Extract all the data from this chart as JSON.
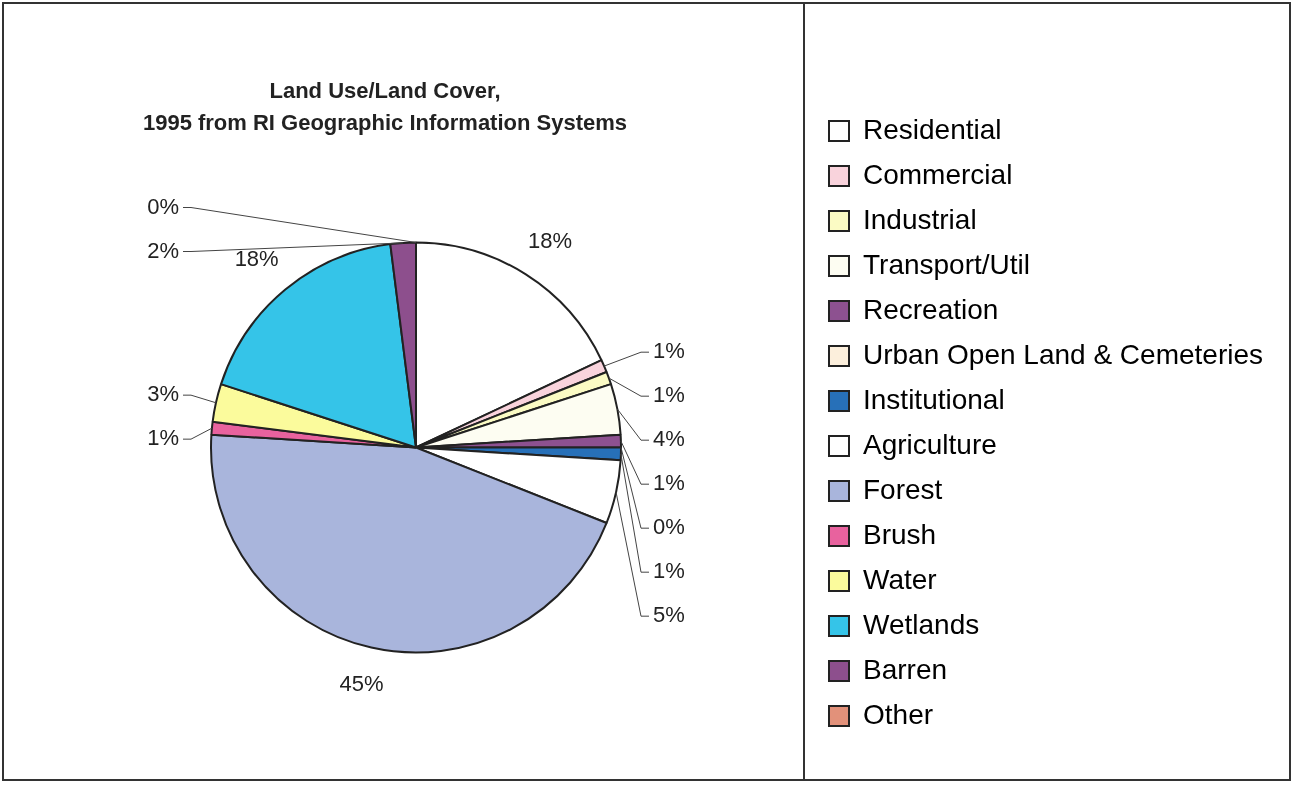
{
  "chart_data": {
    "type": "pie",
    "title": "Land Use/Land Cover,\n1995 from RI Geographic Information Systems",
    "categories": [
      "Residential",
      "Commercial",
      "Industrial",
      "Transport/Util",
      "Recreation",
      "Urban Open Land & Cemeteries",
      "Institutional",
      "Agriculture",
      "Forest",
      "Brush",
      "Water",
      "Wetlands",
      "Barren",
      "Other"
    ],
    "values": [
      18,
      1,
      1,
      4,
      1,
      0,
      1,
      5,
      45,
      1,
      3,
      18,
      2,
      0
    ],
    "value_labels": [
      "18%",
      "1%",
      "1%",
      "4%",
      "1%",
      "0%",
      "1%",
      "5%",
      "45%",
      "1%",
      "3%",
      "18%",
      "2%",
      "0%"
    ],
    "colors": [
      "#ffffff",
      "#f9d3dc",
      "#fbfbc4",
      "#fdfdf2",
      "#8d5190",
      "#fcefdc",
      "#2770b8",
      "#ffffff",
      "#a9b5dc",
      "#e8629e",
      "#fbfb9c",
      "#35c4e8",
      "#8d4f8d",
      "#e2917a"
    ],
    "legend": "right"
  }
}
